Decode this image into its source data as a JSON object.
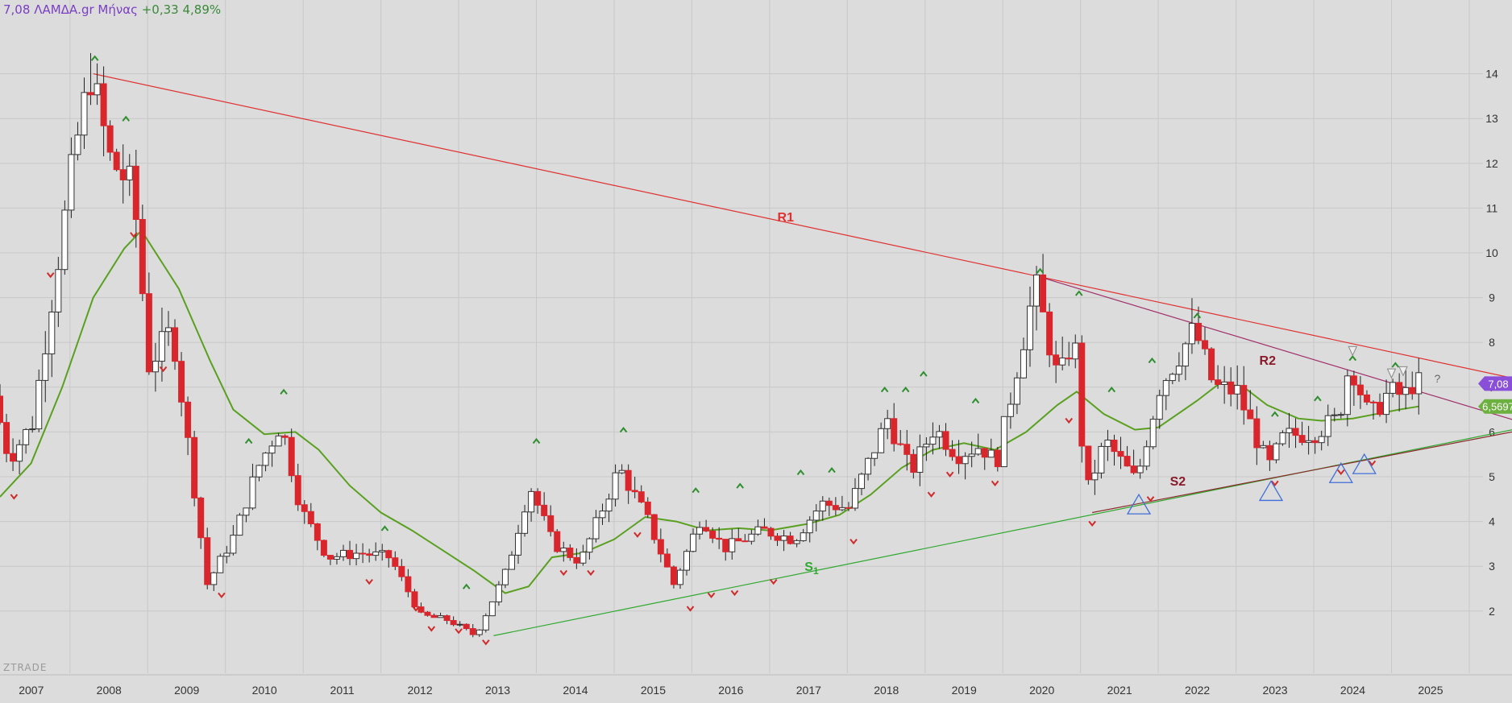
{
  "header": {
    "price": "7,08",
    "symbol": "ΛΑΜΔΑ.gr",
    "interval": "Μήνας",
    "change": "+0,33",
    "change_pct": "4,89%"
  },
  "watermark": "ZTRADE",
  "colors": {
    "background": "#dcdcdc",
    "grid": "#c8c8c8",
    "bull_candle": "#ffffff",
    "bear_candle": "#d9262c",
    "wick": "#222222",
    "ma_line": "#5aa020",
    "r1_line": "#e03030",
    "r2_line": "#a0306a",
    "s1_line": "#2fa82f",
    "s2_line": "#8a2a2a",
    "price_badge": "#8a4fd8",
    "ma_badge": "#6cb040",
    "fractal_up": "#2f8f2f",
    "fractal_down": "#d02a2a",
    "triangle": "#3f6fd8"
  },
  "chart_data": {
    "type": "candlestick",
    "x_axis": {
      "ticks": [
        "2007",
        "2008",
        "2009",
        "2010",
        "2011",
        "2012",
        "2013",
        "2014",
        "2015",
        "2016",
        "2017",
        "2018",
        "2019",
        "2020",
        "2021",
        "2022",
        "2023",
        "2024",
        "2025"
      ],
      "range": [
        2006.1,
        2025.6
      ]
    },
    "y_axis": {
      "ticks": [
        2,
        3,
        4,
        5,
        6,
        7,
        8,
        9,
        10,
        11,
        12,
        13,
        14
      ],
      "range": [
        1.0,
        15.0
      ],
      "position": "right"
    },
    "grid": true,
    "last_price_label": "7,08",
    "ma_value_label": "6,5697",
    "anchors": [
      [
        2006.1,
        6.8
      ],
      [
        2006.3,
        5.4
      ],
      [
        2006.6,
        6.2
      ],
      [
        2006.9,
        9.5
      ],
      [
        2007.15,
        12.3
      ],
      [
        2007.35,
        14.0
      ],
      [
        2007.6,
        12.1
      ],
      [
        2007.9,
        11.4
      ],
      [
        2008.1,
        7.5
      ],
      [
        2008.4,
        8.3
      ],
      [
        2008.7,
        4.5
      ],
      [
        2008.85,
        2.6
      ],
      [
        2009.2,
        3.7
      ],
      [
        2009.5,
        5.2
      ],
      [
        2009.8,
        6.2
      ],
      [
        2010.05,
        4.3
      ],
      [
        2010.4,
        3.2
      ],
      [
        2010.8,
        3.3
      ],
      [
        2011.2,
        3.2
      ],
      [
        2011.6,
        1.9
      ],
      [
        2011.95,
        1.8
      ],
      [
        2012.3,
        1.45
      ],
      [
        2012.7,
        2.9
      ],
      [
        2013.0,
        4.8
      ],
      [
        2013.3,
        3.5
      ],
      [
        2013.65,
        3.1
      ],
      [
        2014.15,
        5.2
      ],
      [
        2014.5,
        4.1
      ],
      [
        2014.85,
        2.6
      ],
      [
        2015.2,
        4.1
      ],
      [
        2015.5,
        3.4
      ],
      [
        2016.0,
        3.8
      ],
      [
        2016.4,
        3.6
      ],
      [
        2016.75,
        4.4
      ],
      [
        2017.1,
        4.3
      ],
      [
        2017.6,
        6.3
      ],
      [
        2017.9,
        5.1
      ],
      [
        2018.2,
        6.1
      ],
      [
        2018.5,
        5.5
      ],
      [
        2018.8,
        5.7
      ],
      [
        2019.0,
        5.3
      ],
      [
        2019.5,
        9.3
      ],
      [
        2019.8,
        7.1
      ],
      [
        2020.0,
        8.2
      ],
      [
        2020.15,
        4.6
      ],
      [
        2020.4,
        5.8
      ],
      [
        2020.8,
        4.9
      ],
      [
        2021.1,
        7.0
      ],
      [
        2021.55,
        8.3
      ],
      [
        2021.8,
        7.0
      ],
      [
        2022.1,
        6.9
      ],
      [
        2022.5,
        5.2
      ],
      [
        2022.7,
        5.9
      ],
      [
        2023.1,
        6.0
      ],
      [
        2023.4,
        6.3
      ],
      [
        2023.55,
        7.6
      ],
      [
        2023.8,
        6.3
      ],
      [
        2024.05,
        6.9
      ],
      [
        2024.25,
        6.8
      ],
      [
        2024.35,
        7.08
      ]
    ],
    "ma_points": [
      [
        2006.1,
        4.55
      ],
      [
        2006.5,
        5.3
      ],
      [
        2006.9,
        7.0
      ],
      [
        2007.3,
        9.0
      ],
      [
        2007.7,
        10.1
      ],
      [
        2007.92,
        10.5
      ],
      [
        2008.4,
        9.2
      ],
      [
        2008.8,
        7.6
      ],
      [
        2009.1,
        6.5
      ],
      [
        2009.5,
        5.95
      ],
      [
        2009.9,
        6.0
      ],
      [
        2010.2,
        5.6
      ],
      [
        2010.6,
        4.8
      ],
      [
        2011.0,
        4.2
      ],
      [
        2011.4,
        3.8
      ],
      [
        2011.8,
        3.35
      ],
      [
        2012.2,
        2.9
      ],
      [
        2012.6,
        2.4
      ],
      [
        2012.9,
        2.55
      ],
      [
        2013.2,
        3.2
      ],
      [
        2013.6,
        3.3
      ],
      [
        2014.0,
        3.6
      ],
      [
        2014.4,
        4.1
      ],
      [
        2014.8,
        4.0
      ],
      [
        2015.2,
        3.8
      ],
      [
        2015.6,
        3.85
      ],
      [
        2016.0,
        3.8
      ],
      [
        2016.5,
        3.95
      ],
      [
        2016.9,
        4.15
      ],
      [
        2017.3,
        4.6
      ],
      [
        2017.7,
        5.2
      ],
      [
        2018.1,
        5.6
      ],
      [
        2018.5,
        5.75
      ],
      [
        2018.9,
        5.6
      ],
      [
        2019.3,
        6.0
      ],
      [
        2019.7,
        6.6
      ],
      [
        2019.95,
        6.9
      ],
      [
        2020.3,
        6.4
      ],
      [
        2020.7,
        6.05
      ],
      [
        2021.0,
        6.1
      ],
      [
        2021.5,
        6.7
      ],
      [
        2021.8,
        7.1
      ],
      [
        2022.1,
        7.0
      ],
      [
        2022.4,
        6.6
      ],
      [
        2022.8,
        6.3
      ],
      [
        2023.1,
        6.25
      ],
      [
        2023.5,
        6.3
      ],
      [
        2023.8,
        6.4
      ],
      [
        2024.1,
        6.5
      ],
      [
        2024.35,
        6.5697
      ]
    ],
    "trendlines": [
      {
        "name": "R1",
        "x1": 2007.3,
        "y1": 14.0,
        "x2": 2025.7,
        "y2": 7.15
      },
      {
        "name": "R2",
        "x1": 2019.5,
        "y1": 9.45,
        "x2": 2025.7,
        "y2": 6.2
      },
      {
        "name": "S1",
        "x1": 2012.45,
        "y1": 1.45,
        "x2": 2025.7,
        "y2": 6.1
      },
      {
        "name": "S2",
        "x1": 2020.15,
        "y1": 4.2,
        "x2": 2025.7,
        "y2": 6.05
      }
    ],
    "line_labels": [
      {
        "text": "R1",
        "x": 2016.1,
        "y": 10.7
      },
      {
        "text": "R2",
        "x": 2022.3,
        "y": 7.5
      },
      {
        "text": "S",
        "sub": "1",
        "x": 2016.45,
        "y": 2.9
      },
      {
        "text": "S2",
        "x": 2021.15,
        "y": 4.8
      }
    ],
    "fractal_up": [
      [
        2007.32,
        14.35
      ],
      [
        2007.72,
        13.0
      ],
      [
        2009.3,
        5.8
      ],
      [
        2009.75,
        6.9
      ],
      [
        2011.05,
        3.85
      ],
      [
        2012.1,
        2.55
      ],
      [
        2013.0,
        5.8
      ],
      [
        2014.12,
        6.05
      ],
      [
        2015.05,
        4.7
      ],
      [
        2015.62,
        4.8
      ],
      [
        2016.4,
        5.1
      ],
      [
        2016.8,
        5.15
      ],
      [
        2017.48,
        6.95
      ],
      [
        2017.75,
        6.95
      ],
      [
        2017.98,
        7.3
      ],
      [
        2018.65,
        6.7
      ],
      [
        2019.48,
        9.6
      ],
      [
        2019.98,
        9.1
      ],
      [
        2020.4,
        6.95
      ],
      [
        2020.92,
        7.6
      ],
      [
        2021.5,
        8.6
      ],
      [
        2022.5,
        6.4
      ],
      [
        2023.05,
        6.75
      ],
      [
        2023.5,
        7.65
      ],
      [
        2024.05,
        7.5
      ]
    ],
    "fractal_down": [
      [
        2006.28,
        4.55
      ],
      [
        2006.75,
        9.5
      ],
      [
        2007.82,
        10.4
      ],
      [
        2008.2,
        7.4
      ],
      [
        2008.95,
        2.35
      ],
      [
        2010.85,
        2.65
      ],
      [
        2011.45,
        2.05
      ],
      [
        2011.65,
        1.6
      ],
      [
        2012.0,
        1.55
      ],
      [
        2012.35,
        1.3
      ],
      [
        2013.35,
        2.85
      ],
      [
        2013.7,
        2.85
      ],
      [
        2014.3,
        3.7
      ],
      [
        2014.98,
        2.05
      ],
      [
        2015.25,
        2.35
      ],
      [
        2015.55,
        2.4
      ],
      [
        2016.05,
        2.65
      ],
      [
        2017.08,
        3.55
      ],
      [
        2018.08,
        4.6
      ],
      [
        2018.32,
        5.05
      ],
      [
        2018.9,
        4.85
      ],
      [
        2019.85,
        6.25
      ],
      [
        2020.15,
        3.95
      ],
      [
        2020.9,
        4.5
      ],
      [
        2022.5,
        4.85
      ],
      [
        2023.35,
        5.1
      ],
      [
        2023.75,
        5.3
      ]
    ],
    "triangles": [
      [
        2020.75,
        4.35
      ],
      [
        2022.45,
        4.65
      ],
      [
        2023.35,
        5.05
      ],
      [
        2023.65,
        5.25
      ]
    ],
    "small_arrows": [
      [
        2023.5,
        7.8
      ],
      [
        2024.0,
        7.3
      ],
      [
        2024.15,
        7.35
      ]
    ],
    "question_mark": {
      "text": "?",
      "x": 2024.55,
      "y": 7.1
    },
    "series": [
      {
        "name": "",
        "values": []
      }
    ]
  }
}
